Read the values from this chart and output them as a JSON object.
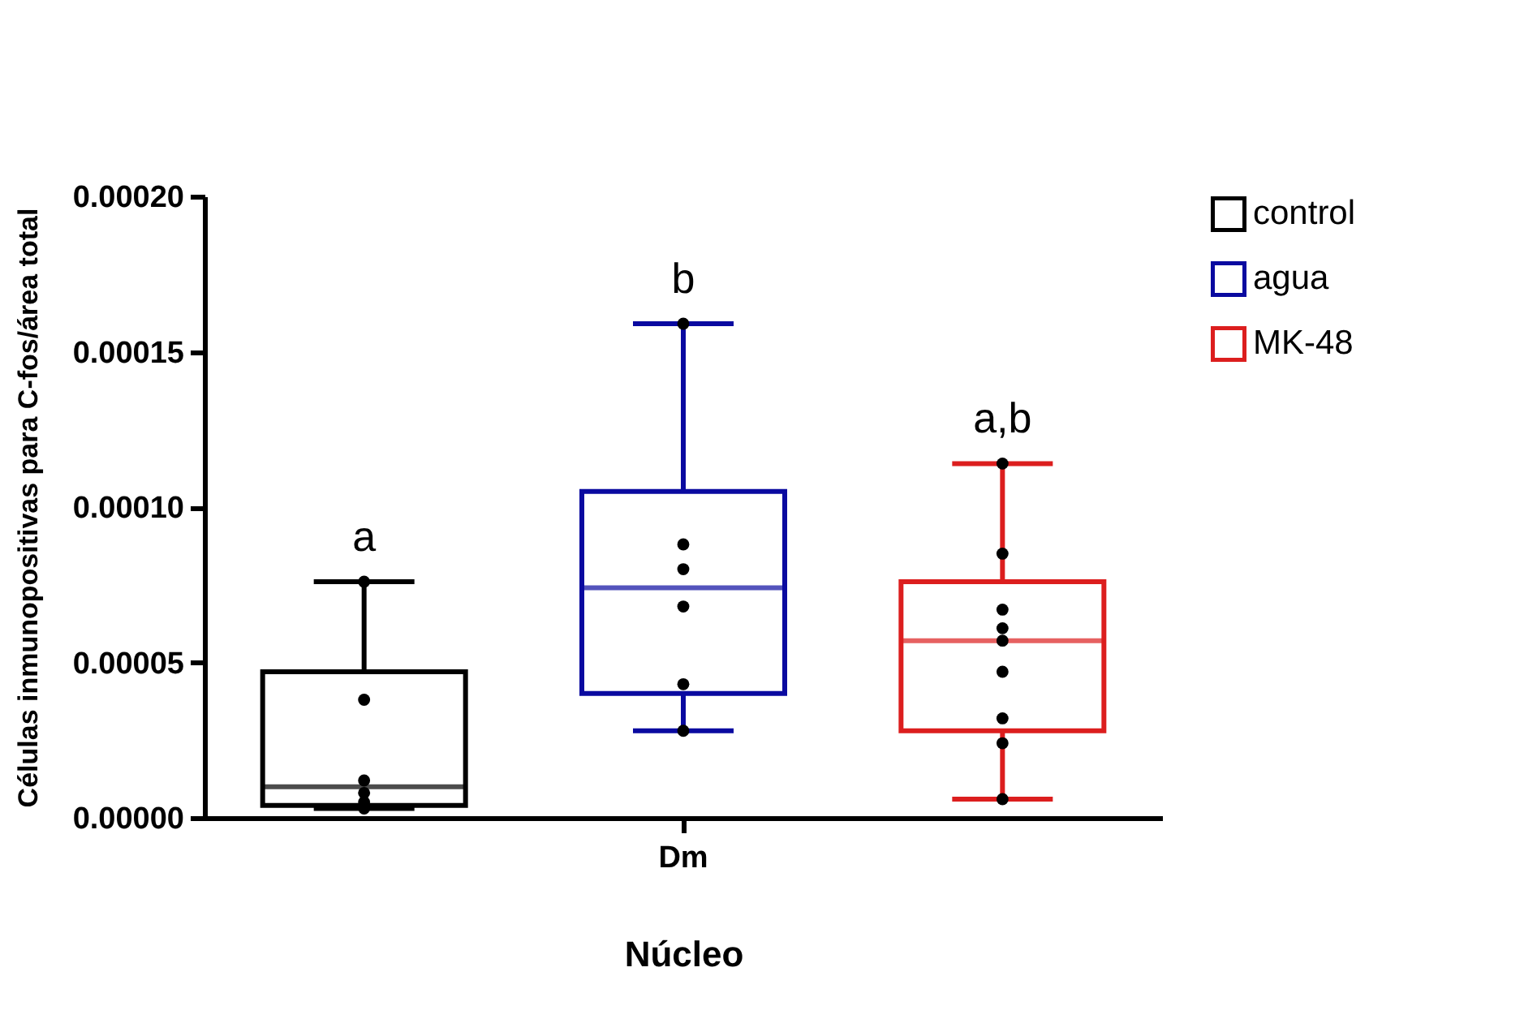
{
  "chart_data": {
    "type": "box",
    "xlabel": "Núcleo",
    "ylabel": "Células inmunopositivas para C-fos/área total",
    "categories": [
      "Dm"
    ],
    "ylim": [
      0,
      0.0002
    ],
    "yticks": [
      {
        "value": 0,
        "label": "0.00000"
      },
      {
        "value": 5e-05,
        "label": "0.00005"
      },
      {
        "value": 0.0001,
        "label": "0.00010"
      },
      {
        "value": 0.00015,
        "label": "0.00015"
      },
      {
        "value": 0.0002,
        "label": "0.00020"
      }
    ],
    "grid": false,
    "legend": "top right",
    "marker": "circle",
    "series": [
      {
        "name": "control",
        "color": "#000000",
        "boxes": [
          {
            "low": 3e-06,
            "q1": 4e-06,
            "median": 1e-05,
            "q3": 4.7e-05,
            "high": 7.6e-05,
            "outliers": [
              7.6e-05,
              3.8e-05,
              1.2e-05,
              8e-06,
              5e-06,
              3e-06
            ]
          }
        ]
      },
      {
        "name": "agua",
        "color": "#0a0aa0",
        "boxes": [
          {
            "low": 2.8e-05,
            "q1": 4e-05,
            "median": 7.4e-05,
            "q3": 0.000105,
            "high": 0.000159,
            "outliers": [
              0.000159,
              8.8e-05,
              8e-05,
              6.8e-05,
              4.3e-05,
              2.8e-05
            ]
          }
        ]
      },
      {
        "name": "MK-48",
        "color": "#dc1e1e",
        "boxes": [
          {
            "low": 6e-06,
            "q1": 2.8e-05,
            "median": 5.7e-05,
            "q3": 7.6e-05,
            "high": 0.000114,
            "outliers": [
              0.000114,
              8.5e-05,
              6.7e-05,
              6.1e-05,
              5.7e-05,
              4.7e-05,
              3.2e-05,
              2.4e-05,
              6e-06
            ]
          }
        ]
      }
    ],
    "annotations": [
      "a",
      "b",
      "a,b"
    ]
  }
}
